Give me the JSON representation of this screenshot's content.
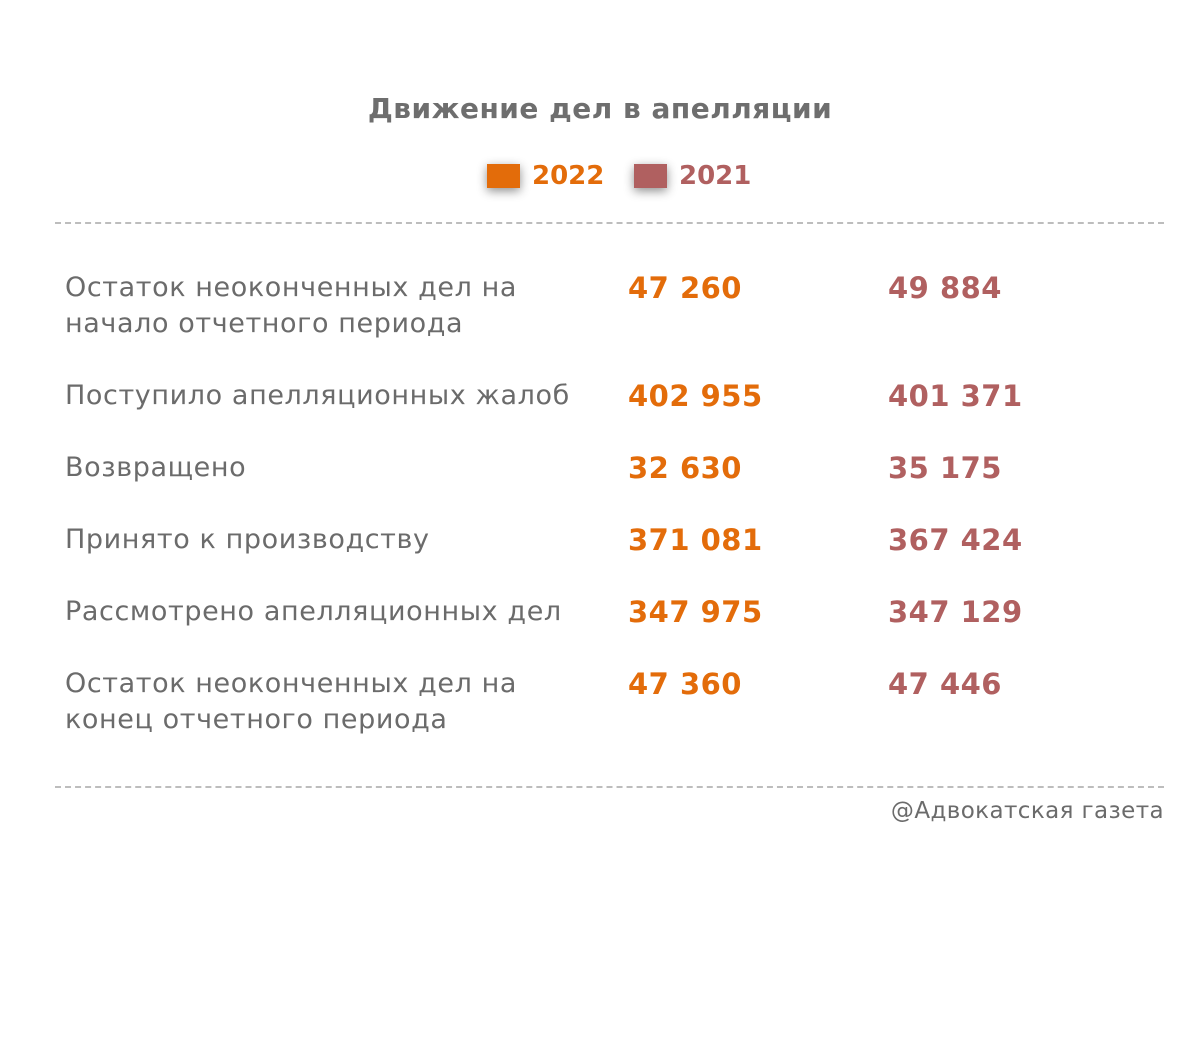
{
  "colors": {
    "y2022": "#e36c0a",
    "y2021": "#b06060"
  },
  "chart_data": {
    "type": "table",
    "title": "Движение дел в апелляции",
    "series": [
      {
        "name": "2022",
        "color": "#e36c0a",
        "values": [
          "47 260",
          "402 955",
          "32 630",
          "371 081",
          "347 975",
          "47 360"
        ]
      },
      {
        "name": "2021",
        "color": "#b06060",
        "values": [
          "49 884",
          "401 371",
          "35 175",
          "367 424",
          "347 129",
          "47 446"
        ]
      }
    ],
    "rows": [
      {
        "label": "Остаток неоконченных дел на\nначало отчетного периода"
      },
      {
        "label": "Поступило апелляционных жалоб"
      },
      {
        "label": "Возвращено"
      },
      {
        "label": "Принято к производству"
      },
      {
        "label": "Рассмотрено апелляционных дел"
      },
      {
        "label": "Остаток неоконченных дел на\nконец отчетного периода"
      }
    ]
  },
  "source": "@Адвокатская газета"
}
